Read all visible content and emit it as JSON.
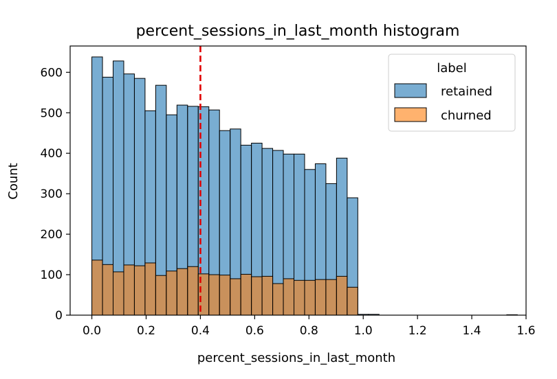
{
  "chart_data": {
    "type": "bar",
    "title": "percent_sessions_in_last_month histogram",
    "xlabel": "percent_sessions_in_last_month",
    "ylabel": "Count",
    "xlim": [
      -0.08,
      1.6
    ],
    "ylim": [
      0,
      665
    ],
    "xticks": [
      "0.0",
      "0.2",
      "0.4",
      "0.6",
      "0.8",
      "1.0",
      "1.2",
      "1.4",
      "1.6"
    ],
    "yticks": [
      "0",
      "100",
      "200",
      "300",
      "400",
      "500",
      "600"
    ],
    "bin_width": 0.0392,
    "bin_starts": [
      0.0,
      0.0392,
      0.0784,
      0.1176,
      0.1568,
      0.196,
      0.2352,
      0.2744,
      0.3136,
      0.3528,
      0.392,
      0.4312,
      0.4704,
      0.5096,
      0.5488,
      0.588,
      0.6272,
      0.6664,
      0.7056,
      0.7448,
      0.784,
      0.8232,
      0.8624,
      0.9016,
      0.9408,
      0.98,
      1.0192,
      1.0584,
      1.0976,
      1.1368,
      1.176,
      1.2152,
      1.2544,
      1.2936,
      1.3328,
      1.372,
      1.4112,
      1.4504,
      1.4896,
      1.5288
    ],
    "series": [
      {
        "name": "retained",
        "color": "#1f77b4",
        "values": [
          638,
          588,
          628,
          596,
          585,
          505,
          568,
          495,
          519,
          516,
          515,
          507,
          456,
          460,
          420,
          425,
          412,
          407,
          398,
          398,
          360,
          374,
          325,
          388,
          290,
          2,
          2,
          0,
          0,
          0,
          0,
          0,
          0,
          0,
          0,
          0,
          0,
          0,
          0,
          1
        ]
      },
      {
        "name": "churned",
        "color": "#ff7f0e",
        "values": [
          136,
          125,
          107,
          124,
          122,
          129,
          98,
          109,
          115,
          120,
          102,
          100,
          99,
          90,
          101,
          95,
          96,
          78,
          90,
          86,
          86,
          88,
          88,
          96,
          69,
          0,
          0,
          0,
          0,
          0,
          0,
          0,
          0,
          0,
          0,
          0,
          0,
          0,
          0,
          0
        ]
      }
    ],
    "median_line": {
      "x": 0.4,
      "color": "#e00000",
      "style": "dashed"
    },
    "legend": {
      "title": "label",
      "placement": "top-right",
      "entries": [
        "retained",
        "churned"
      ]
    },
    "grid": false
  }
}
